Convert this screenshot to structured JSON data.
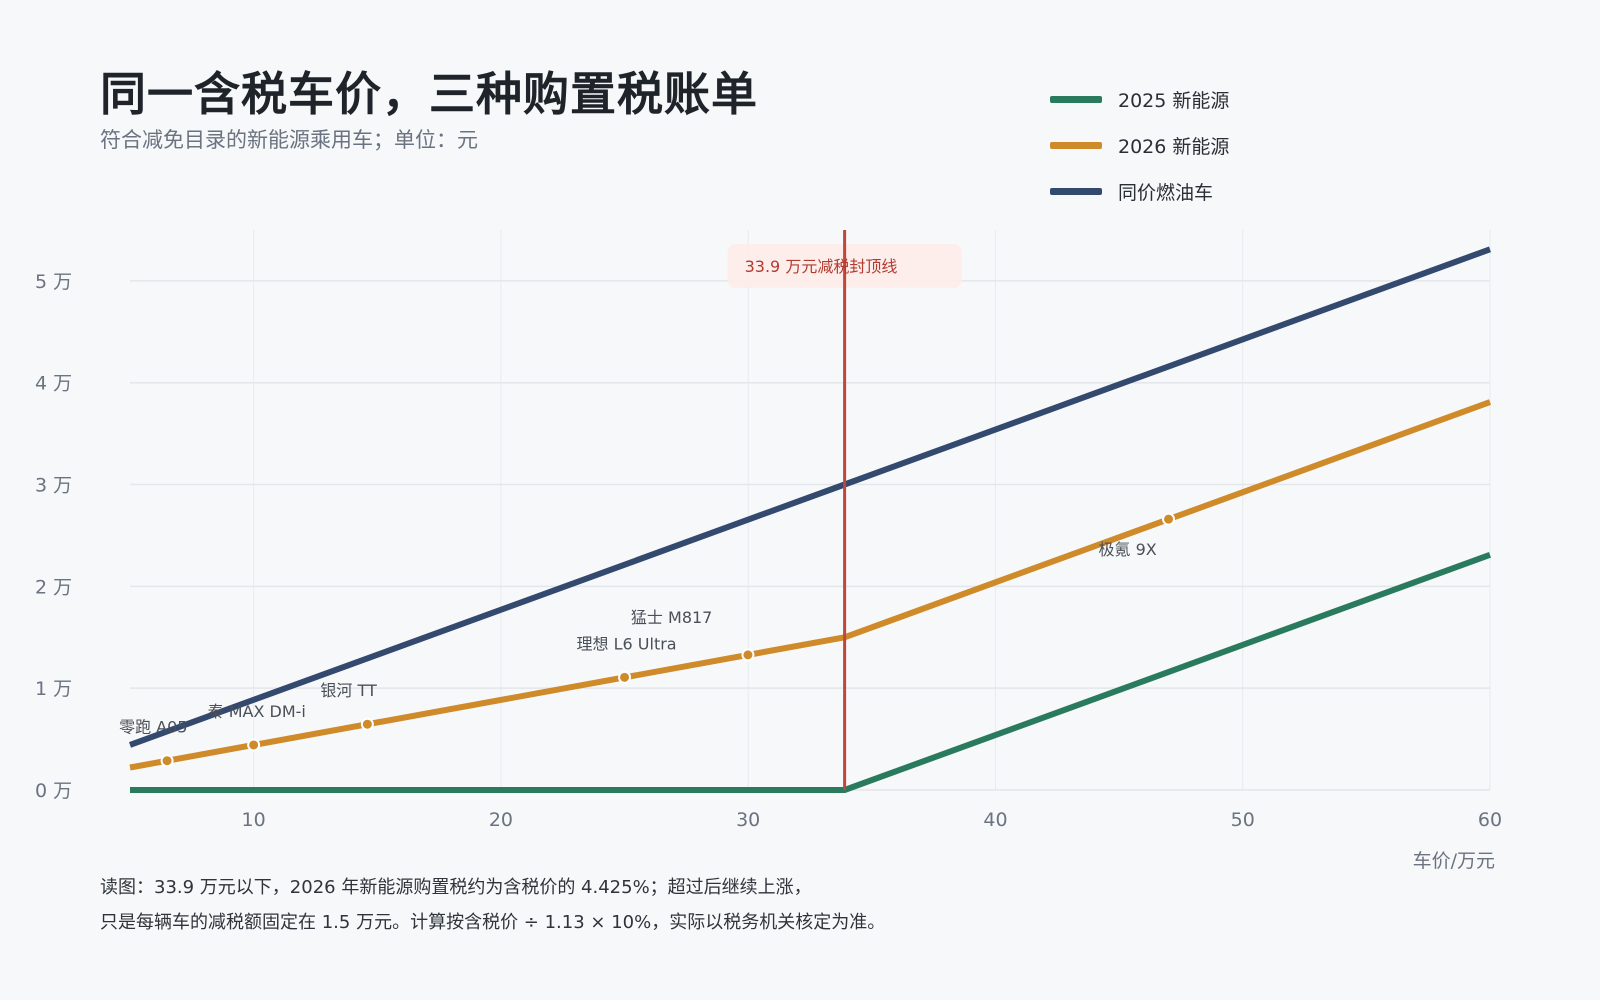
{
  "header": {
    "title": "同一含税车价，三种购置税账单",
    "subtitle": "符合减免目录的新能源乘用车；单位：元"
  },
  "footnote": {
    "line1": "读图：33.9 万元以下，2026 年新能源购置税约为含税价的 4.425%；超过后继续上涨，",
    "line2": "只是每辆车的减税额固定在 1.5 万元。计算按含税价 ÷ 1.13 × 10%，实际以税务机关核定为准。"
  },
  "colors": {
    "nev2025": "#2a7a5e",
    "nev2026": "#cf8a2a",
    "fuel": "#34496e",
    "cap": "#c0463a",
    "cap_box": "#fdecea",
    "grid": "#e3e6ea"
  },
  "chart_data": {
    "type": "line",
    "title": "同一含税车价，三种购置税账单",
    "subtitle": "符合减免目录的新能源乘用车；单位：元",
    "xlabel": "车价/万元",
    "ylabel": "",
    "xlim": [
      5,
      60
    ],
    "ylim": [
      0,
      55000
    ],
    "x_ticks": [
      10,
      20,
      30,
      40,
      50,
      60
    ],
    "y_ticks": [
      0,
      10000,
      20000,
      30000,
      40000,
      50000
    ],
    "y_tick_labels": [
      "0 万",
      "1 万",
      "2 万",
      "3 万",
      "4 万",
      "5 万"
    ],
    "grid": true,
    "legend_position": "top-right",
    "series": [
      {
        "name": "2025 新能源",
        "color": "#2a7a5e",
        "x": [
          5,
          33.9,
          60
        ],
        "y": [
          0,
          0,
          23100
        ]
      },
      {
        "name": "2026 新能源",
        "color": "#cf8a2a",
        "x": [
          5,
          33.9,
          60
        ],
        "y": [
          2212,
          15000,
          38100
        ]
      },
      {
        "name": "同价燃油车",
        "color": "#34496e",
        "x": [
          5,
          33.9,
          60
        ],
        "y": [
          4425,
          30000,
          53100
        ]
      }
    ],
    "cap_line": {
      "x": 33.9,
      "label": "33.9 万元减税封顶线"
    },
    "car_points": [
      {
        "name": "零跑 A05",
        "x": 6.5,
        "y": 2876
      },
      {
        "name": "秦 MAX DM-i",
        "x": 10,
        "y": 4425
      },
      {
        "name": "银河 TT",
        "x": 14.6,
        "y": 6461
      },
      {
        "name": "理想 L6 Ultra",
        "x": 25,
        "y": 11063
      },
      {
        "name": "猛士 M817",
        "x": 29.99,
        "y": 13271
      },
      {
        "name": "极氪 9X",
        "x": 47.0,
        "y": 26600
      }
    ]
  }
}
